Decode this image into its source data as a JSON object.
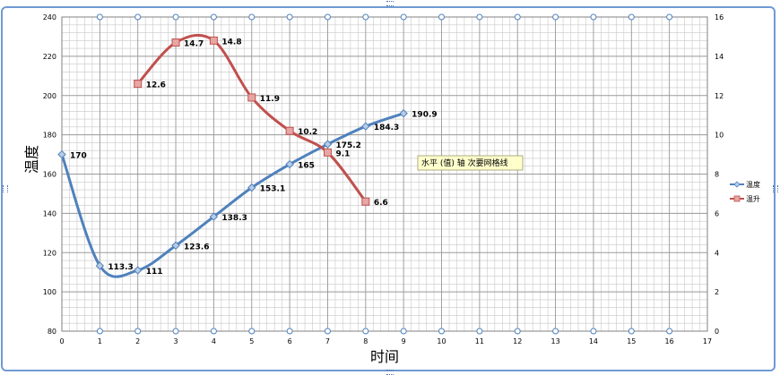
{
  "chart_data": {
    "type": "line",
    "title": "",
    "xlabel": "时间",
    "ylabel": "温度",
    "xlim": [
      0,
      17
    ],
    "ylim_left": [
      80,
      240
    ],
    "ylim_right": [
      0,
      16
    ],
    "x_ticks": [
      0,
      1,
      2,
      3,
      4,
      5,
      6,
      7,
      8,
      9,
      10,
      11,
      12,
      13,
      14,
      15,
      16,
      17
    ],
    "y_left_ticks": [
      80,
      100,
      120,
      140,
      160,
      180,
      200,
      220,
      240
    ],
    "y_right_ticks": [
      0,
      2,
      4,
      6,
      8,
      10,
      12,
      14,
      16
    ],
    "grid": true,
    "minor_grid": true,
    "legend_position": "right",
    "series": [
      {
        "name": "温度",
        "axis": "left",
        "color": "#4f81bd",
        "marker": "diamond",
        "x": [
          0,
          1,
          2,
          3,
          4,
          5,
          6,
          7,
          8,
          9
        ],
        "values": [
          170,
          113.3,
          111,
          123.6,
          138.3,
          153.1,
          165,
          175.2,
          184.3,
          190.9
        ],
        "labels": [
          "170",
          "113.3",
          "111",
          "123.6",
          "138.3",
          "153.1",
          "165",
          "175.2",
          "184.3",
          "190.9"
        ]
      },
      {
        "name": "温升",
        "axis": "right",
        "color": "#c0504d",
        "marker": "square",
        "x": [
          2,
          3,
          4,
          5,
          6,
          7,
          8
        ],
        "values": [
          12.6,
          14.7,
          14.8,
          11.9,
          10.2,
          9.1,
          6.6
        ],
        "labels": [
          "12.6",
          "14.7",
          "14.8",
          "11.9",
          "10.2",
          "9.1",
          "6.6"
        ]
      }
    ],
    "annotations": [
      {
        "text": "水平 (值) 轴 次要网格线"
      }
    ]
  }
}
